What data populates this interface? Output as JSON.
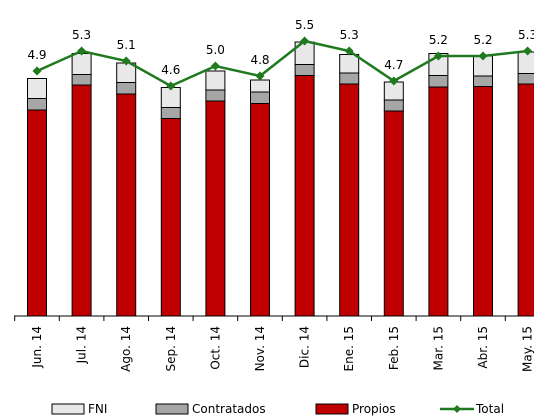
{
  "chart_data": {
    "type": "bar",
    "stacked": true,
    "categories": [
      "Jun. 14",
      "Jul. 14",
      "Ago. 14",
      "Sep. 14",
      "Oct. 14",
      "Nov. 14",
      "Dic. 14",
      "Ene. 15",
      "Feb. 15",
      "Mar. 15",
      "Abr. 15",
      "May. 15"
    ],
    "series": [
      {
        "name": "Propios",
        "color": "#c00000",
        "values": [
          4.12,
          4.62,
          4.44,
          3.95,
          4.3,
          4.25,
          4.81,
          4.64,
          4.1,
          4.58,
          4.59,
          4.64
        ]
      },
      {
        "name": "Contratados",
        "color": "#a6a6a6",
        "values": [
          0.23,
          0.21,
          0.23,
          0.22,
          0.22,
          0.23,
          0.22,
          0.22,
          0.22,
          0.23,
          0.21,
          0.21
        ]
      },
      {
        "name": "FNI",
        "color": "#e8e8e8",
        "values": [
          0.4,
          0.42,
          0.39,
          0.4,
          0.38,
          0.24,
          0.45,
          0.37,
          0.36,
          0.44,
          0.4,
          0.43
        ]
      },
      {
        "name": "Total",
        "type": "line",
        "color": "#1f7a1f",
        "values": [
          4.9,
          5.3,
          5.1,
          4.6,
          5.0,
          4.8,
          5.5,
          5.3,
          4.7,
          5.2,
          5.2,
          5.3
        ]
      }
    ],
    "data_labels": [
      "4.9",
      "5.3",
      "5.1",
      "4.6",
      "5.0",
      "4.8",
      "5.5",
      "5.3",
      "4.7",
      "5.2",
      "5.2",
      "5.3"
    ],
    "ylim": [
      0,
      5.9
    ],
    "grid": false,
    "legend_position": "bottom",
    "legend": [
      {
        "name": "FNI",
        "kind": "box",
        "color": "#e8e8e8"
      },
      {
        "name": "Contratados",
        "kind": "box",
        "color": "#a6a6a6"
      },
      {
        "name": "Propios",
        "kind": "box",
        "color": "#c00000"
      },
      {
        "name": "Total",
        "kind": "line",
        "color": "#1f7a1f"
      }
    ]
  }
}
